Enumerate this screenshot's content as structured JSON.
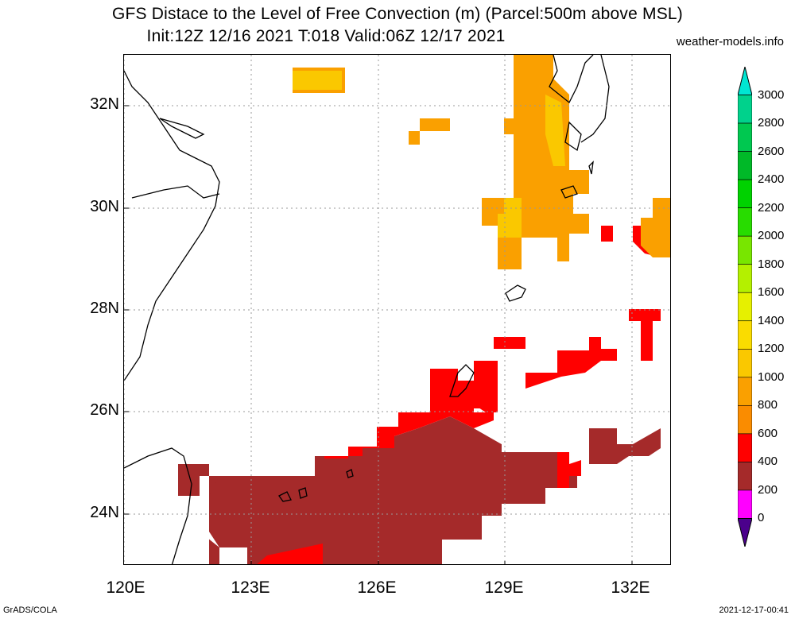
{
  "title": {
    "line1": "GFS Distace to the Level of Free Convection (m) (Parcel:500m above MSL)",
    "line2": "Init:12Z 12/16 2021 T:018 Valid:06Z 12/17 2021"
  },
  "credit": "weather-models.info",
  "footer": {
    "left": "GrADS/COLA",
    "right": "2021-12-17-00:41"
  },
  "map": {
    "lat_labels": [
      "32N",
      "30N",
      "28N",
      "26N",
      "24N"
    ],
    "lon_labels": [
      "120E",
      "123E",
      "126E",
      "129E",
      "132E"
    ],
    "grid": "dotted"
  },
  "colorbar": {
    "labels": [
      "3000",
      "2800",
      "2600",
      "2400",
      "2200",
      "2000",
      "1800",
      "1600",
      "1400",
      "1200",
      "1000",
      "800",
      "600",
      "400",
      "200",
      "0"
    ],
    "colors": [
      "#00e6d2",
      "#00d28c",
      "#00c850",
      "#00b928",
      "#00d200",
      "#28dc00",
      "#78e600",
      "#b4f000",
      "#e6f000",
      "#fadc00",
      "#fac800",
      "#faa000",
      "#fa8c00",
      "#ff0000",
      "#a52a2a",
      "#ff00ff",
      "#4b008c"
    ]
  }
}
